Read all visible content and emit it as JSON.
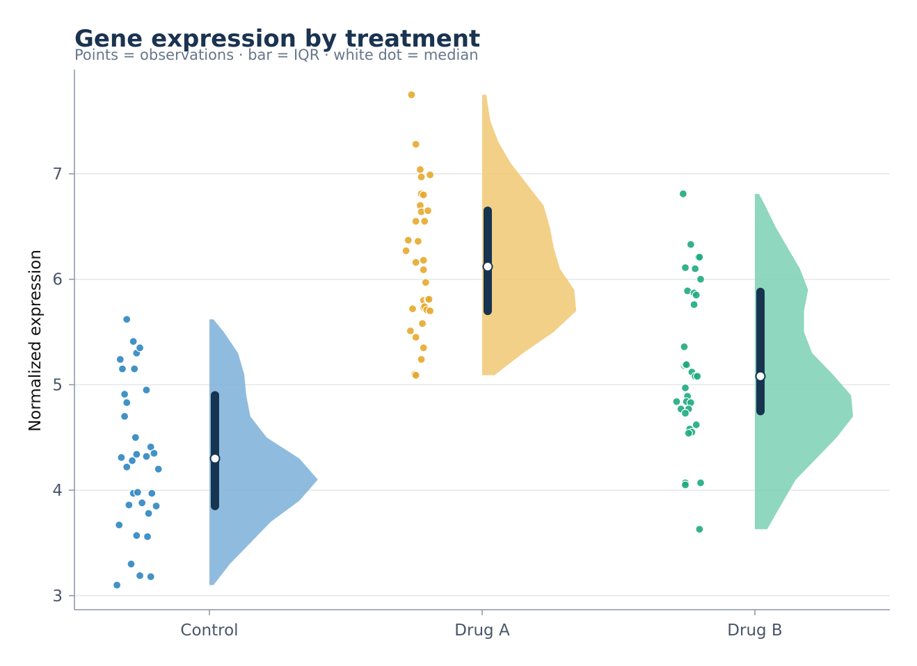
{
  "chart_data": {
    "type": "raincloud",
    "title": "Gene expression by treatment",
    "subtitle": "Points = observations · bar = IQR · white dot = median",
    "ylabel": "Normalized expression",
    "xlabel": "",
    "ylim": [
      2.9,
      7.9
    ],
    "yticks": [
      3,
      4,
      5,
      6,
      7
    ],
    "grid": "horizontal",
    "categories": [
      "Control",
      "Drug A",
      "Drug B"
    ],
    "groups": [
      {
        "name": "Control",
        "color": "#2e86c1",
        "cloud_color": "#7fb3d9",
        "median": 4.3,
        "q1": 3.85,
        "q3": 4.9,
        "min": 3.1,
        "max": 5.62,
        "density": [
          [
            3.1,
            0.02
          ],
          [
            3.3,
            0.1
          ],
          [
            3.5,
            0.2
          ],
          [
            3.7,
            0.3
          ],
          [
            3.9,
            0.44
          ],
          [
            4.1,
            0.53
          ],
          [
            4.3,
            0.44
          ],
          [
            4.5,
            0.28
          ],
          [
            4.7,
            0.2
          ],
          [
            4.9,
            0.18
          ],
          [
            5.1,
            0.17
          ],
          [
            5.3,
            0.14
          ],
          [
            5.5,
            0.07
          ],
          [
            5.62,
            0.02
          ]
        ],
        "observations": [
          [
            0.62,
            5.62
          ],
          [
            0.56,
            5.24
          ],
          [
            0.68,
            5.41
          ],
          [
            0.71,
            5.3
          ],
          [
            0.74,
            5.35
          ],
          [
            0.58,
            5.15
          ],
          [
            0.69,
            5.15
          ],
          [
            0.8,
            4.95
          ],
          [
            0.6,
            4.91
          ],
          [
            0.62,
            4.83
          ],
          [
            0.6,
            4.7
          ],
          [
            0.7,
            4.5
          ],
          [
            0.57,
            4.31
          ],
          [
            0.71,
            4.34
          ],
          [
            0.84,
            4.41
          ],
          [
            0.87,
            4.35
          ],
          [
            0.62,
            4.22
          ],
          [
            0.67,
            4.28
          ],
          [
            0.8,
            4.32
          ],
          [
            0.91,
            4.2
          ],
          [
            0.68,
            3.97
          ],
          [
            0.72,
            3.98
          ],
          [
            0.76,
            3.88
          ],
          [
            0.85,
            3.97
          ],
          [
            0.64,
            3.86
          ],
          [
            0.89,
            3.85
          ],
          [
            0.82,
            3.78
          ],
          [
            0.55,
            3.67
          ],
          [
            0.71,
            3.57
          ],
          [
            0.81,
            3.56
          ],
          [
            0.66,
            3.3
          ],
          [
            0.74,
            3.19
          ],
          [
            0.84,
            3.18
          ],
          [
            0.53,
            3.1
          ]
        ]
      },
      {
        "name": "Drug A",
        "color": "#e5a82e",
        "cloud_color": "#f1c978",
        "median": 6.12,
        "q1": 5.7,
        "q3": 6.65,
        "min": 5.09,
        "max": 7.75,
        "density": [
          [
            5.09,
            0.06
          ],
          [
            5.3,
            0.2
          ],
          [
            5.5,
            0.35
          ],
          [
            5.7,
            0.46
          ],
          [
            5.9,
            0.45
          ],
          [
            6.1,
            0.38
          ],
          [
            6.3,
            0.35
          ],
          [
            6.5,
            0.33
          ],
          [
            6.7,
            0.3
          ],
          [
            6.9,
            0.22
          ],
          [
            7.1,
            0.14
          ],
          [
            7.3,
            0.08
          ],
          [
            7.5,
            0.04
          ],
          [
            7.75,
            0.02
          ]
        ],
        "observations": [
          [
            0.73,
            7.75
          ],
          [
            0.77,
            7.28
          ],
          [
            0.81,
            7.04
          ],
          [
            0.82,
            6.97
          ],
          [
            0.9,
            6.99
          ],
          [
            0.82,
            6.81
          ],
          [
            0.84,
            6.8
          ],
          [
            0.81,
            6.7
          ],
          [
            0.82,
            6.64
          ],
          [
            0.88,
            6.65
          ],
          [
            0.77,
            6.55
          ],
          [
            0.85,
            6.55
          ],
          [
            0.7,
            6.37
          ],
          [
            0.79,
            6.36
          ],
          [
            0.68,
            6.27
          ],
          [
            0.77,
            6.16
          ],
          [
            0.84,
            6.18
          ],
          [
            0.84,
            6.09
          ],
          [
            0.86,
            5.97
          ],
          [
            0.84,
            5.8
          ],
          [
            0.88,
            5.81
          ],
          [
            0.89,
            5.81
          ],
          [
            0.84,
            5.73
          ],
          [
            0.85,
            5.74
          ],
          [
            0.87,
            5.71
          ],
          [
            0.9,
            5.7
          ],
          [
            0.74,
            5.72
          ],
          [
            0.83,
            5.58
          ],
          [
            0.72,
            5.51
          ],
          [
            0.77,
            5.45
          ],
          [
            0.84,
            5.35
          ],
          [
            0.82,
            5.24
          ],
          [
            0.76,
            5.1
          ],
          [
            0.77,
            5.09
          ]
        ],
        "notes": ""
      },
      {
        "name": "Drug B",
        "color": "#1faa80",
        "cloud_color": "#7fd2b6",
        "median": 5.08,
        "q1": 4.75,
        "q3": 5.88,
        "min": 3.63,
        "max": 6.81,
        "density": [
          [
            3.63,
            0.06
          ],
          [
            3.9,
            0.14
          ],
          [
            4.1,
            0.2
          ],
          [
            4.3,
            0.3
          ],
          [
            4.5,
            0.4
          ],
          [
            4.7,
            0.48
          ],
          [
            4.9,
            0.47
          ],
          [
            5.1,
            0.38
          ],
          [
            5.3,
            0.28
          ],
          [
            5.5,
            0.24
          ],
          [
            5.7,
            0.24
          ],
          [
            5.9,
            0.26
          ],
          [
            6.1,
            0.22
          ],
          [
            6.3,
            0.16
          ],
          [
            6.5,
            0.1
          ],
          [
            6.7,
            0.05
          ],
          [
            6.81,
            0.02
          ]
        ],
        "observations": [
          [
            0.72,
            6.81
          ],
          [
            0.79,
            6.33
          ],
          [
            0.74,
            6.11
          ],
          [
            0.83,
            6.1
          ],
          [
            0.86,
            6.21
          ],
          [
            0.87,
            6.21
          ],
          [
            0.88,
            6.0
          ],
          [
            0.76,
            5.89
          ],
          [
            0.82,
            5.87
          ],
          [
            0.84,
            5.85
          ],
          [
            0.82,
            5.76
          ],
          [
            0.73,
            5.36
          ],
          [
            0.73,
            5.18
          ],
          [
            0.74,
            5.19
          ],
          [
            0.75,
            5.19
          ],
          [
            0.8,
            5.12
          ],
          [
            0.83,
            5.08
          ],
          [
            0.85,
            5.08
          ],
          [
            0.74,
            4.97
          ],
          [
            0.76,
            4.89
          ],
          [
            0.66,
            4.84
          ],
          [
            0.75,
            4.84
          ],
          [
            0.79,
            4.83
          ],
          [
            0.7,
            4.77
          ],
          [
            0.77,
            4.77
          ],
          [
            0.74,
            4.73
          ],
          [
            0.84,
            4.62
          ],
          [
            0.78,
            4.58
          ],
          [
            0.8,
            4.55
          ],
          [
            0.77,
            4.54
          ],
          [
            0.74,
            4.07
          ],
          [
            0.74,
            4.05
          ],
          [
            0.88,
            4.07
          ],
          [
            0.87,
            3.63
          ]
        ]
      }
    ]
  }
}
